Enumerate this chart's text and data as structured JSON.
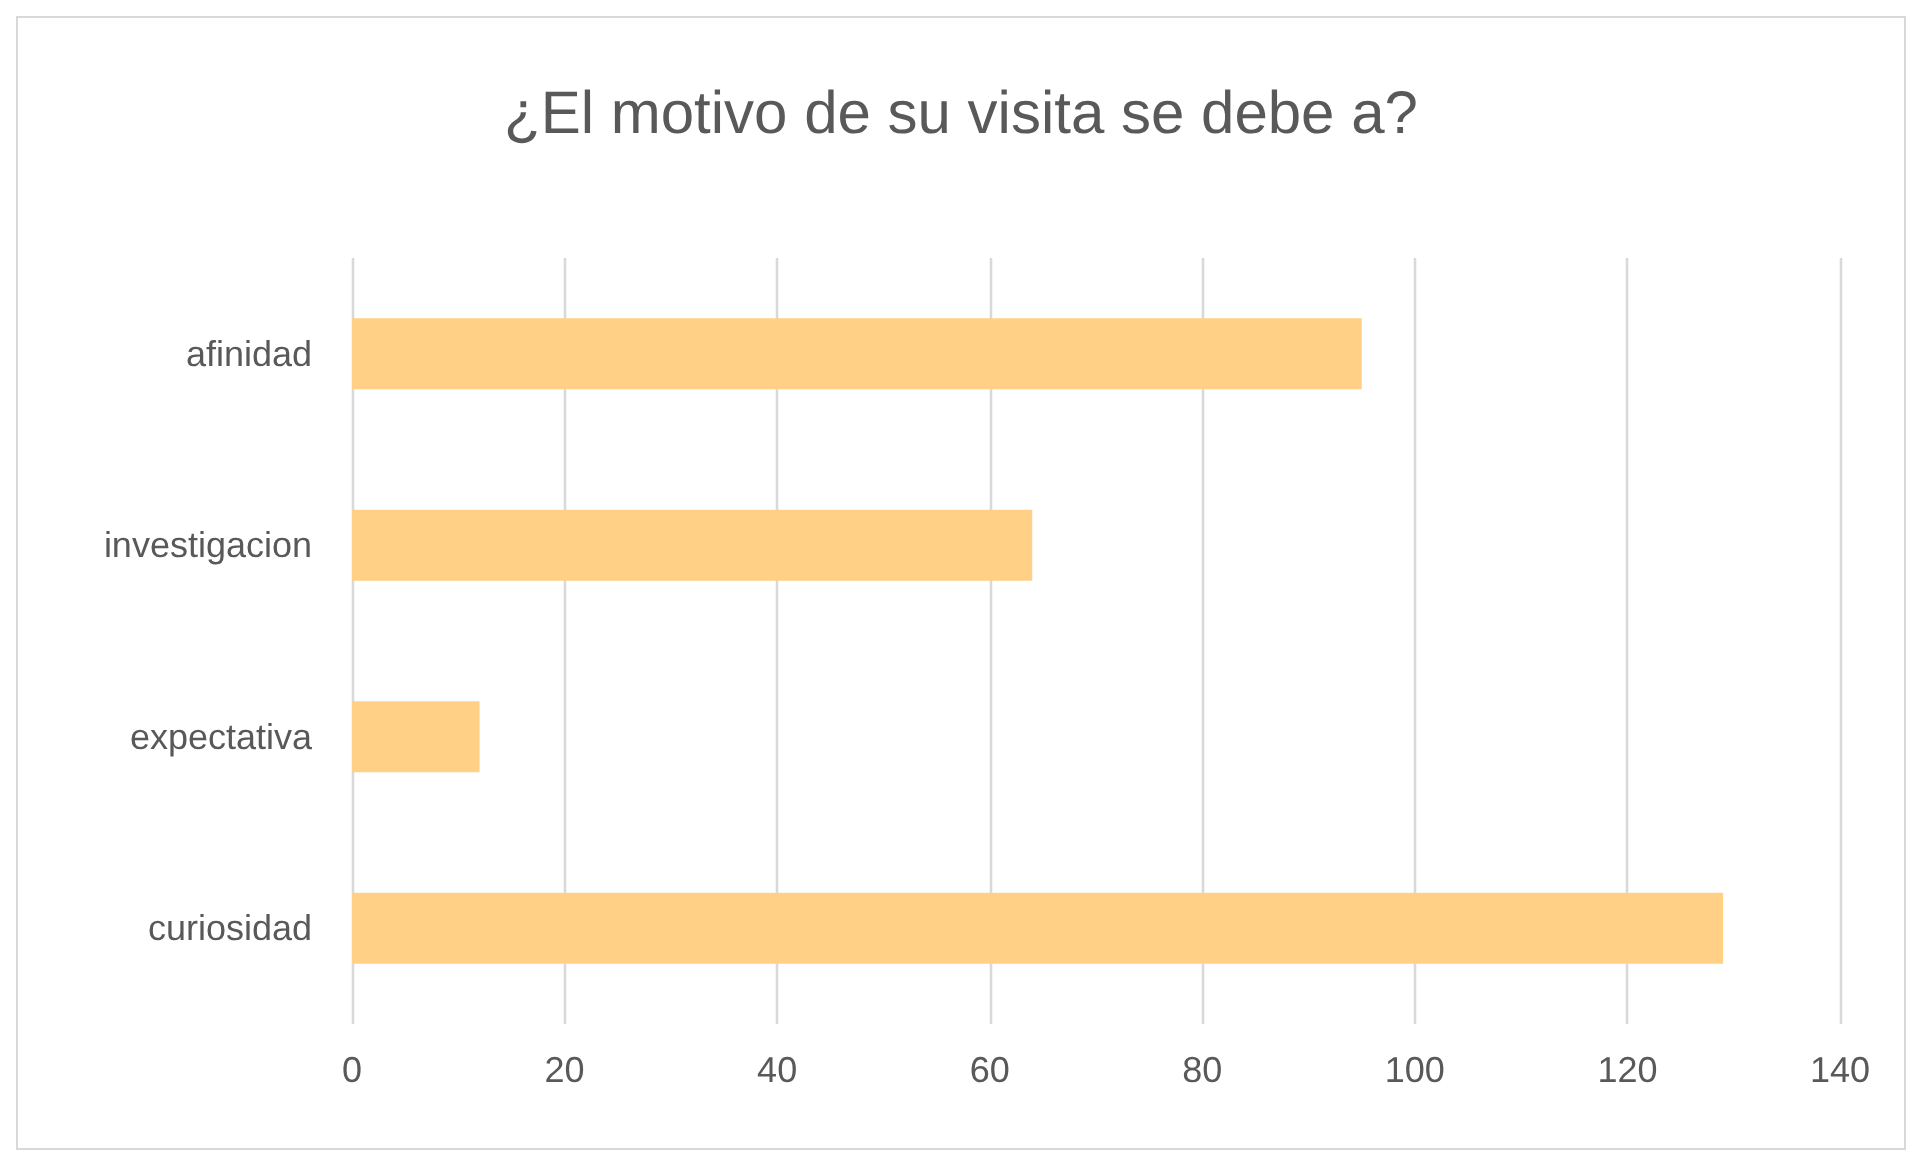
{
  "chart_data": {
    "type": "bar",
    "orientation": "horizontal",
    "title": "¿El motivo de su visita se debe a?",
    "categories": [
      "afinidad",
      "investigacion",
      "expectativa",
      "curiosidad"
    ],
    "values": [
      95,
      64,
      12,
      129
    ],
    "color": "#ffd086",
    "xlim": [
      0,
      140
    ],
    "xticks": [
      0,
      20,
      40,
      60,
      80,
      100,
      120,
      140
    ],
    "grid": "x"
  }
}
